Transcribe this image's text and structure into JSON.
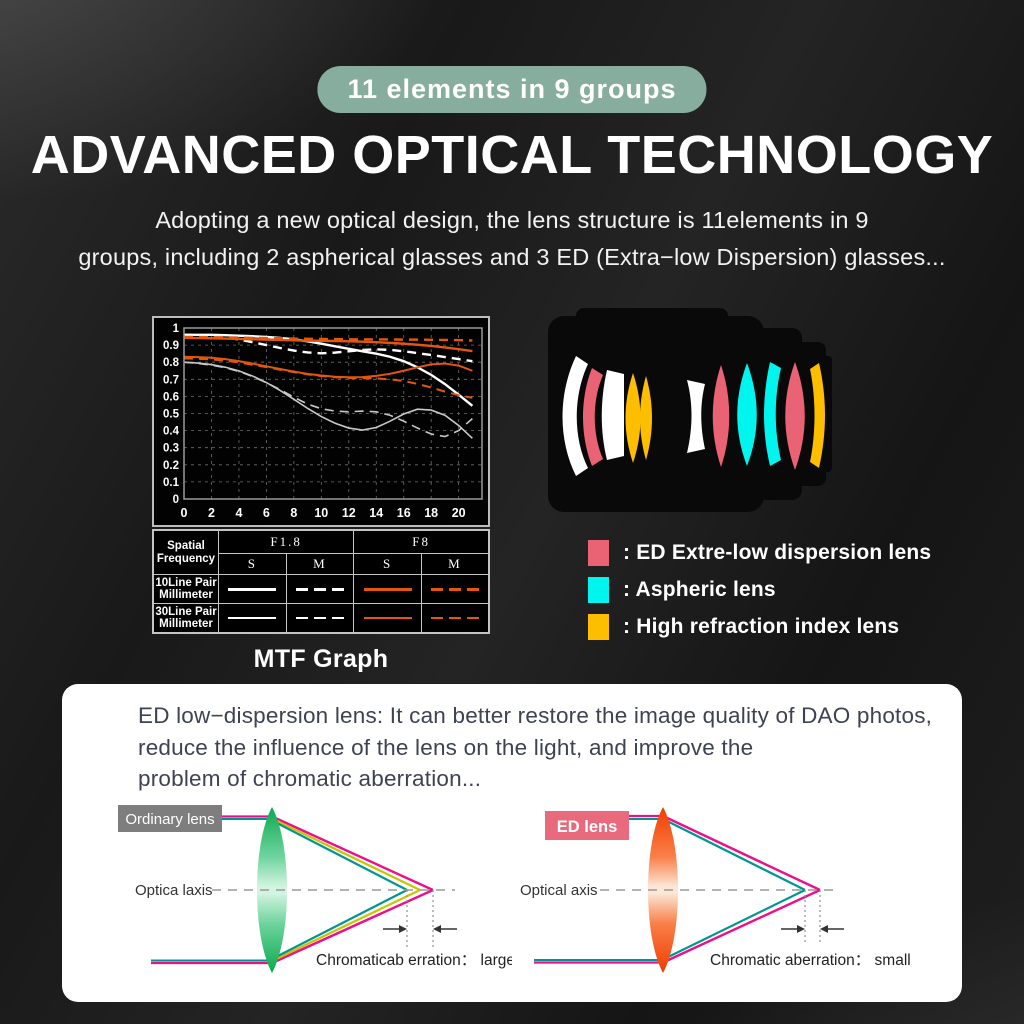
{
  "badge": {
    "label": "11 elements in 9 groups",
    "bg": "#87ad9e"
  },
  "title": "ADVANCED OPTICAL TECHNOLOGY",
  "subtitle": {
    "line1": "Adopting a new optical design, the lens structure is 11elements in 9",
    "line2": "groups, including 2 aspherical glasses and 3 ED (Extra−low Dispersion) glasses..."
  },
  "mtf": {
    "caption": "MTF Graph",
    "table": {
      "corner_header": "Spatial Frequency",
      "col_groups": [
        "F1.8",
        "F8"
      ],
      "sub_cols": [
        "S",
        "M",
        "S",
        "M"
      ],
      "rows": [
        {
          "label": "10Line Pair Millimeter",
          "thickness": 3,
          "samples": [
            {
              "color": "#ffffff",
              "style": "solid"
            },
            {
              "color": "#ffffff",
              "style": "dashed"
            },
            {
              "color": "#e2570d",
              "style": "solid"
            },
            {
              "color": "#e2570d",
              "style": "dashed"
            }
          ]
        },
        {
          "label": "30Line Pair Millimeter",
          "thickness": 2,
          "samples": [
            {
              "color": "#ffffff",
              "style": "solid"
            },
            {
              "color": "#ffffff",
              "style": "dashed"
            },
            {
              "color": "#e2570d",
              "style": "solid"
            },
            {
              "color": "#e2570d",
              "style": "dashed"
            }
          ]
        }
      ]
    }
  },
  "chart_data": {
    "type": "line",
    "title": "MTF Graph",
    "xlim": [
      0,
      21.7
    ],
    "ylim": [
      0,
      1
    ],
    "grid": true,
    "xticks": [
      0,
      2,
      4,
      6,
      8,
      10,
      12,
      14,
      16,
      18,
      20
    ],
    "yticks": [
      0,
      0.1,
      0.2,
      0.3,
      0.4,
      0.5,
      0.6,
      0.7,
      0.8,
      0.9,
      1
    ],
    "yticklabels": [
      "0",
      "0.1",
      "0.2",
      "0.3",
      "0.4",
      "0.5",
      "0.6",
      "0.7",
      "0.8",
      "0.9",
      "1"
    ],
    "x": [
      0,
      1,
      2,
      3,
      4,
      5,
      6,
      7,
      8,
      9,
      10,
      11,
      12,
      13,
      14,
      15,
      16,
      17,
      18,
      19,
      20,
      21
    ],
    "series": [
      {
        "name": "F1.8 S — 10 Line Pair/Millimeter",
        "color": "#ffffff",
        "dash": false,
        "width": 2.4,
        "values": [
          0.96,
          0.96,
          0.96,
          0.958,
          0.955,
          0.952,
          0.948,
          0.942,
          0.934,
          0.922,
          0.908,
          0.893,
          0.878,
          0.864,
          0.85,
          0.832,
          0.806,
          0.77,
          0.726,
          0.672,
          0.61,
          0.545
        ]
      },
      {
        "name": "F1.8 M — 10 Line Pair/Millimeter",
        "color": "#ffffff",
        "dash": true,
        "width": 2.4,
        "values": [
          0.96,
          0.958,
          0.953,
          0.945,
          0.933,
          0.917,
          0.9,
          0.883,
          0.868,
          0.857,
          0.852,
          0.856,
          0.864,
          0.872,
          0.875,
          0.872,
          0.864,
          0.853,
          0.842,
          0.83,
          0.818,
          0.806
        ]
      },
      {
        "name": "F8 S — 10 Line Pair/Millimeter",
        "color": "#e2570d",
        "dash": false,
        "width": 2.4,
        "values": [
          0.942,
          0.941,
          0.94,
          0.938,
          0.936,
          0.934,
          0.932,
          0.93,
          0.928,
          0.926,
          0.925,
          0.924,
          0.922,
          0.92,
          0.917,
          0.913,
          0.908,
          0.902,
          0.895,
          0.886,
          0.876,
          0.865
        ]
      },
      {
        "name": "F8 M — 10 Line Pair/Millimeter",
        "color": "#e2570d",
        "dash": true,
        "width": 2.4,
        "values": [
          0.948,
          0.947,
          0.946,
          0.945,
          0.944,
          0.942,
          0.941,
          0.94,
          0.938,
          0.937,
          0.936,
          0.935,
          0.934,
          0.934,
          0.933,
          0.933,
          0.932,
          0.932,
          0.931,
          0.93,
          0.929,
          0.927
        ]
      },
      {
        "name": "F1.8 S — 30 Line Pair/Millimeter",
        "color": "#c8c8c8",
        "dash": false,
        "width": 1.6,
        "values": [
          0.8,
          0.795,
          0.786,
          0.771,
          0.749,
          0.719,
          0.681,
          0.635,
          0.583,
          0.53,
          0.482,
          0.443,
          0.415,
          0.403,
          0.418,
          0.455,
          0.497,
          0.525,
          0.52,
          0.49,
          0.43,
          0.355
        ]
      },
      {
        "name": "F1.8 M — 30 Line Pair/Millimeter",
        "color": "#c8c8c8",
        "dash": true,
        "width": 1.6,
        "values": [
          0.8,
          0.793,
          0.783,
          0.768,
          0.746,
          0.716,
          0.68,
          0.64,
          0.595,
          0.555,
          0.528,
          0.514,
          0.51,
          0.514,
          0.51,
          0.49,
          0.455,
          0.415,
          0.38,
          0.365,
          0.4,
          0.47
        ]
      },
      {
        "name": "F8 S — 30 Line Pair/Millimeter",
        "color": "#e2570d",
        "dash": false,
        "width": 2,
        "values": [
          0.832,
          0.83,
          0.826,
          0.818,
          0.806,
          0.792,
          0.776,
          0.76,
          0.745,
          0.732,
          0.722,
          0.715,
          0.712,
          0.713,
          0.72,
          0.732,
          0.75,
          0.77,
          0.787,
          0.792,
          0.78,
          0.75
        ]
      },
      {
        "name": "F8 M — 30 Line Pair/Millimeter",
        "color": "#e2570d",
        "dash": true,
        "width": 2,
        "values": [
          0.822,
          0.82,
          0.816,
          0.809,
          0.798,
          0.785,
          0.771,
          0.756,
          0.742,
          0.729,
          0.719,
          0.712,
          0.708,
          0.706,
          0.705,
          0.7,
          0.69,
          0.673,
          0.652,
          0.628,
          0.607,
          0.592
        ]
      }
    ]
  },
  "lens_legend": {
    "items": [
      {
        "color": "#ea6375",
        "label": ": ED Extre-low dispersion lens"
      },
      {
        "color": "#00f5ee",
        "label": ": Aspheric lens"
      },
      {
        "color": "#fdbe00",
        "label": ": High refraction index lens"
      }
    ]
  },
  "card": {
    "description": {
      "line1": "ED low−dispersion lens: It can better restore the image quality of DAO photos,",
      "line2": "reduce the influence of the lens on the light, and improve the",
      "line3": "problem of chromatic aberration..."
    },
    "left_diagram": {
      "label": "Ordinary lens",
      "label_bg": "#7e7e7e",
      "axis_label": "Optica laxis",
      "caption": "Chromaticab erration： large"
    },
    "right_diagram": {
      "label": "ED lens",
      "label_bg": "#e86a7c",
      "axis_label": "Optical axis",
      "caption": "Chromatic aberration： small"
    }
  },
  "colors": {
    "badge_bg": "#87ad9e",
    "curve_white": "#ffffff",
    "curve_orange": "#e2570d",
    "curve_gray": "#c8c8c8",
    "ed_pink": "#ea6375",
    "aspheric_cyan": "#00f5ee",
    "high_refraction_yellow": "#fdbe00",
    "ray_magenta": "#ec0f8c",
    "ray_teal": "#00968f",
    "ray_yellow": "#c9c400",
    "ordinary_lens_green": "#0ba94e",
    "ed_lens_orange": "#f03c00",
    "card_bg": "#ffffff"
  }
}
